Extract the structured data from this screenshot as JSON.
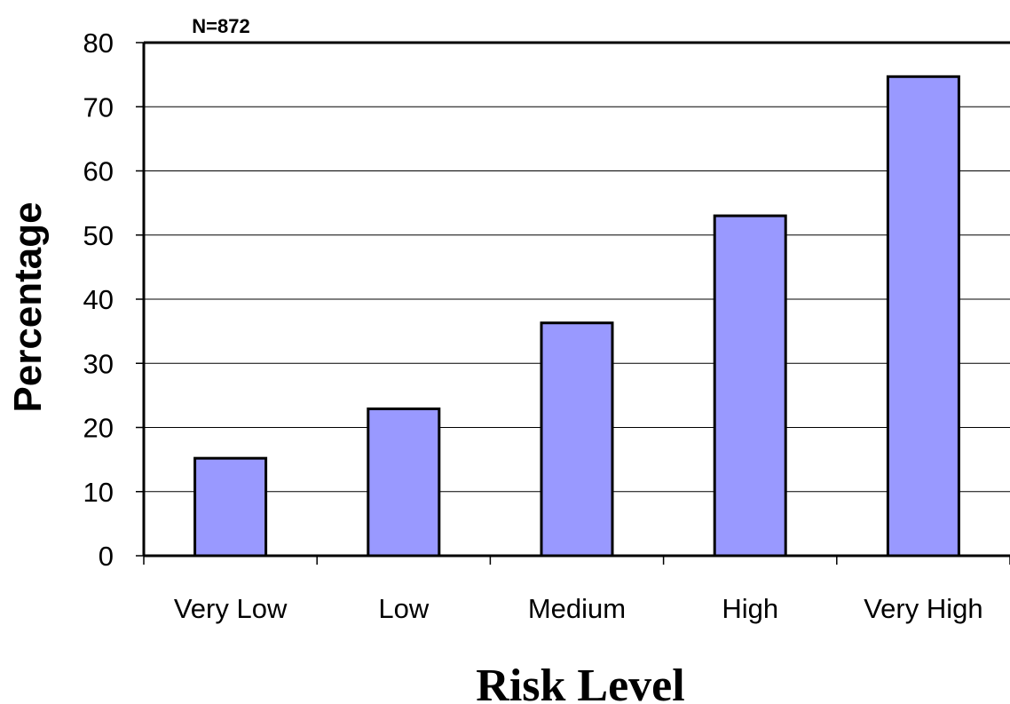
{
  "chart_data": {
    "type": "bar",
    "categories": [
      "Very Low",
      "Low",
      "Medium",
      "High",
      "Very High"
    ],
    "values": [
      15.2,
      22.9,
      36.3,
      53.0,
      74.7
    ],
    "annotation": "N=872",
    "xlabel": "Risk Level",
    "ylabel": "Percentage",
    "ylim": [
      0,
      80
    ],
    "yticks": [
      0,
      10,
      20,
      30,
      40,
      50,
      60,
      70,
      80
    ],
    "grid": true,
    "bar_color": "#9999ff",
    "bar_edge_color": "#000000"
  }
}
